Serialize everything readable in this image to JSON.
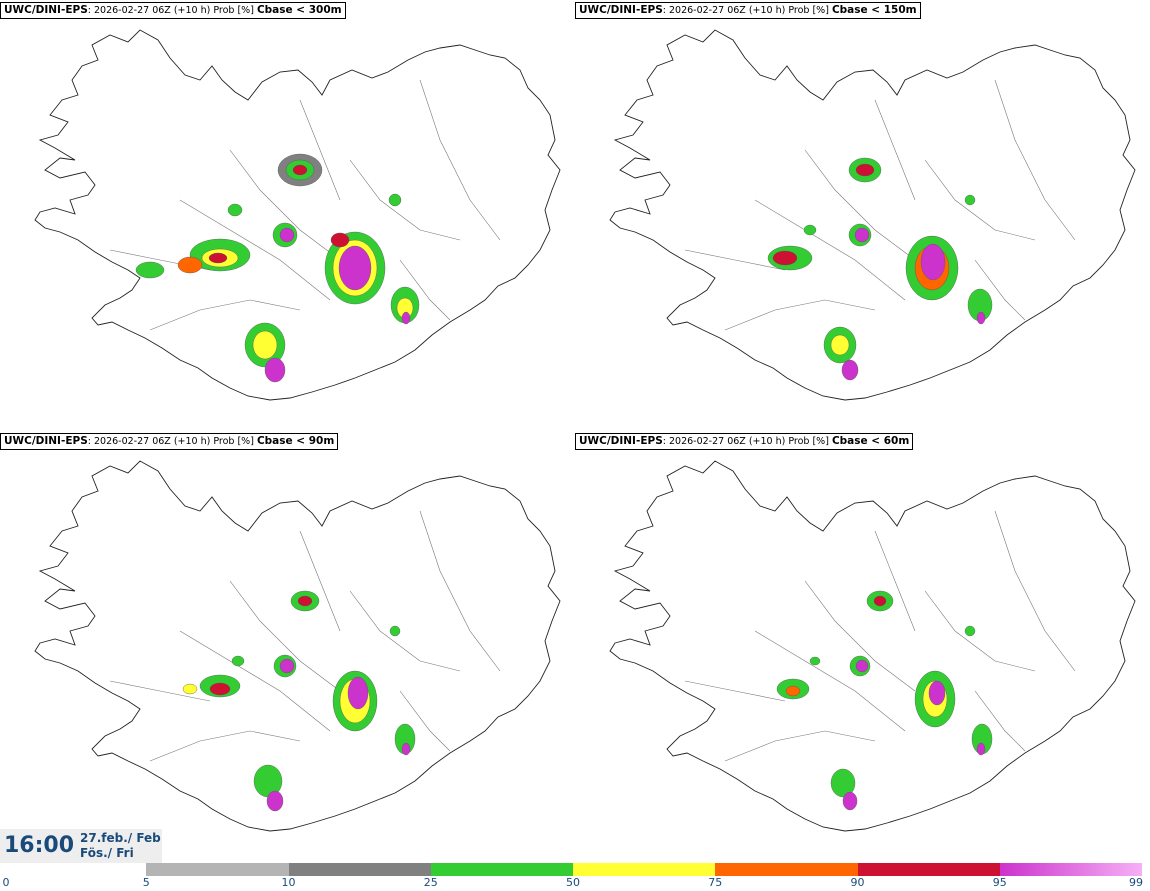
{
  "panels": [
    {
      "source": "UWC/DINI-EPS",
      "run_info": ": 2026-02-27 06Z (+10 h) Prob [%]",
      "condition": "Cbase < 300m"
    },
    {
      "source": "UWC/DINI-EPS",
      "run_info": ": 2026-02-27 06Z (+10 h) Prob [%]",
      "condition": "Cbase < 150m"
    },
    {
      "source": "UWC/DINI-EPS",
      "run_info": ": 2026-02-27 06Z (+10 h) Prob [%]",
      "condition": "Cbase < 90m"
    },
    {
      "source": "UWC/DINI-EPS",
      "run_info": ": 2026-02-27 06Z (+10 h) Prob [%]",
      "condition": "Cbase < 60m"
    }
  ],
  "valid_time": {
    "hour": "16:00",
    "date": "27.feb./ Feb",
    "weekday": "Fös./ Fri"
  },
  "colorbar": {
    "ticks": [
      "0",
      "5",
      "10",
      "25",
      "50",
      "75",
      "90",
      "95",
      "99"
    ],
    "colors": [
      "#ffffff",
      "#b4b4b4",
      "#808080",
      "#33cc33",
      "#ffff33",
      "#ff6600",
      "#cc1133",
      "#cc33cc"
    ],
    "last_gradient_end": "#f5b0f5"
  }
}
